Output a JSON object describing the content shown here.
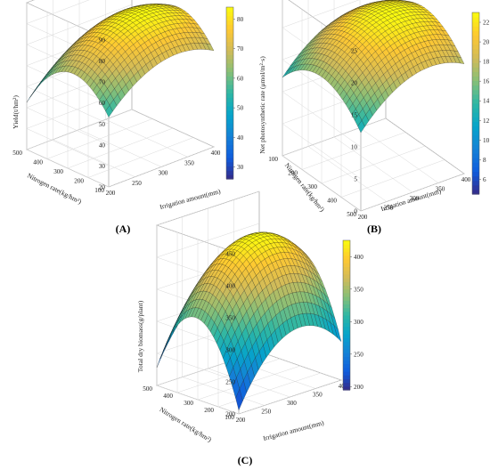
{
  "colors": {
    "colormap": [
      "#352a87",
      "#0f5cdd",
      "#1481d6",
      "#06a4ca",
      "#2eb7a4",
      "#87bf77",
      "#d1bb59",
      "#fec832",
      "#f9fb0e"
    ],
    "mesh_line": "#111111",
    "frame": "#666666"
  },
  "chart_data": [
    {
      "type": "surface",
      "panel": "(A)",
      "zlabel": "Yield(t/hm²)",
      "ylabel": "Nitrogen rate(kg/hm²)",
      "xlabel": "Irrigation amount(mm)",
      "x_ticks": [
        "200",
        "250",
        "300",
        "350",
        "400"
      ],
      "y_ticks": [
        "100",
        "200",
        "300",
        "400",
        "500"
      ],
      "z_ticks": [
        "20",
        "30",
        "40",
        "50",
        "60",
        "70",
        "80",
        "90"
      ],
      "colorbar_ticks": [
        "30",
        "40",
        "50",
        "60",
        "70",
        "80"
      ],
      "xlim": [
        200,
        400
      ],
      "ylim": [
        100,
        500
      ],
      "zlim": [
        20,
        90
      ],
      "clim": [
        26,
        84
      ],
      "grid": true,
      "model": {
        "z_max": 84,
        "x_opt": 330,
        "y_opt": 270,
        "ax": 0.00105,
        "ay": 0.00045
      },
      "corner_values": {
        "x200_y100": 48,
        "x200_y500": 28,
        "x400_y100": 59,
        "x400_y500": 37
      }
    },
    {
      "type": "surface",
      "panel": "(B)",
      "zlabel": "Net photosynthetic rate (μmol/m²·s)",
      "ylabel": "Nitrogen rate(kg/hm²)",
      "xlabel": "Irrigation amount(mm)",
      "x_ticks": [
        "200",
        "250",
        "300",
        "350",
        "400"
      ],
      "y_ticks": [
        "100",
        "200",
        "300",
        "400",
        "500"
      ],
      "z_ticks": [
        "0",
        "5",
        "10",
        "15",
        "20",
        "25"
      ],
      "colorbar_ticks": [
        "6",
        "8",
        "10",
        "12",
        "14",
        "16",
        "18",
        "20",
        "22"
      ],
      "xlim": [
        200,
        400
      ],
      "ylim": [
        100,
        500
      ],
      "zlim": [
        0,
        25
      ],
      "clim": [
        4.5,
        23
      ],
      "grid": true,
      "model": {
        "z_max": 23,
        "x_opt": 335,
        "y_opt": 300,
        "ax": 0.00035,
        "ay": 0.00011
      },
      "corner_values": {
        "x200_y100": 10,
        "x200_y500": 4.7,
        "x400_y100": 17,
        "x400_y500": 15.5
      }
    },
    {
      "type": "surface",
      "panel": "(C)",
      "zlabel": "Total dry biomass(g/plant)",
      "ylabel": "Nitrogen rate(kg/hm²)",
      "xlabel": "Irrigation amount(mm)",
      "x_ticks": [
        "200",
        "250",
        "300",
        "350",
        "400"
      ],
      "y_ticks": [
        "100",
        "200",
        "300",
        "400",
        "500"
      ],
      "z_ticks": [
        "200",
        "250",
        "300",
        "350",
        "400",
        "450"
      ],
      "colorbar_ticks": [
        "200",
        "250",
        "300",
        "350",
        "400"
      ],
      "xlim": [
        200,
        400
      ],
      "ylim": [
        100,
        500
      ],
      "zlim": [
        200,
        450
      ],
      "clim": [
        195,
        425
      ],
      "grid": true,
      "model": {
        "z_max": 425,
        "x_opt": 320,
        "y_opt": 310,
        "ax": 0.0068,
        "ay": 0.00275
      },
      "corner_values": {
        "x200_y100": 195,
        "x200_y500": 250,
        "x400_y100": 290,
        "x400_y500": 330
      }
    }
  ]
}
